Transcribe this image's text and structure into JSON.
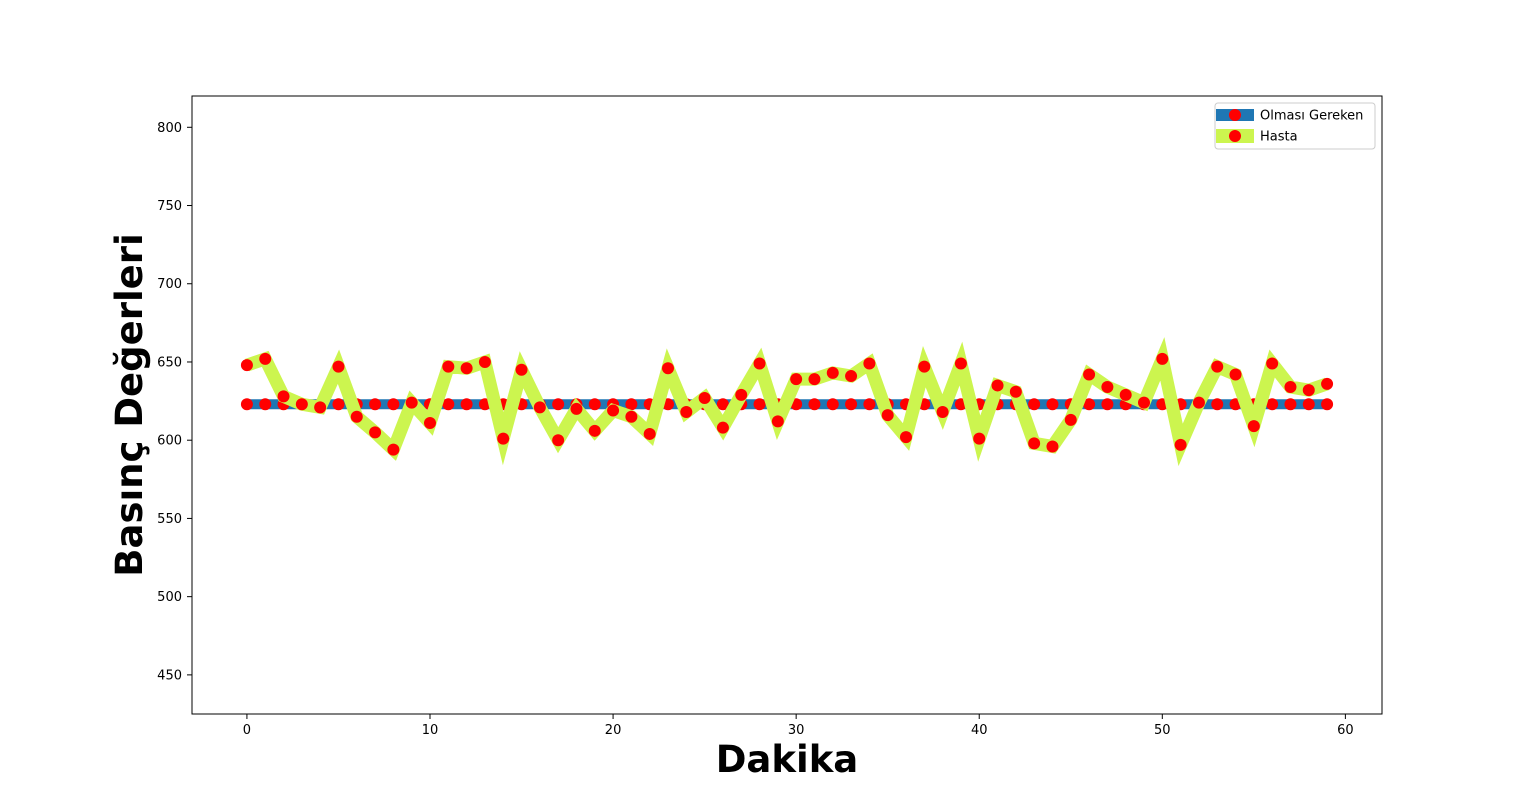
{
  "chart_data": {
    "type": "line",
    "title": "",
    "xlabel": "Dakika",
    "ylabel": "Basınç Değerleri",
    "xlim": [
      -3,
      62
    ],
    "ylim": [
      425,
      820
    ],
    "xticks": [
      0,
      10,
      20,
      30,
      40,
      50,
      60
    ],
    "yticks": [
      450,
      500,
      550,
      600,
      650,
      700,
      750,
      800
    ],
    "grid": false,
    "legend_position": "top-right",
    "series": [
      {
        "name": "Olması Gereken",
        "line_color": "#1f77b4",
        "marker_color": "#ff0000",
        "x": [
          0,
          1,
          2,
          3,
          4,
          5,
          6,
          7,
          8,
          9,
          10,
          11,
          12,
          13,
          14,
          15,
          16,
          17,
          18,
          19,
          20,
          21,
          22,
          23,
          24,
          25,
          26,
          27,
          28,
          29,
          30,
          31,
          32,
          33,
          34,
          35,
          36,
          37,
          38,
          39,
          40,
          41,
          42,
          43,
          44,
          45,
          46,
          47,
          48,
          49,
          50,
          51,
          52,
          53,
          54,
          55,
          56,
          57,
          58,
          59
        ],
        "y": [
          623,
          623,
          623,
          623,
          623,
          623,
          623,
          623,
          623,
          623,
          623,
          623,
          623,
          623,
          623,
          623,
          623,
          623,
          623,
          623,
          623,
          623,
          623,
          623,
          623,
          623,
          623,
          623,
          623,
          623,
          623,
          623,
          623,
          623,
          623,
          623,
          623,
          623,
          623,
          623,
          623,
          623,
          623,
          623,
          623,
          623,
          623,
          623,
          623,
          623,
          623,
          623,
          623,
          623,
          623,
          623,
          623,
          623,
          623,
          623
        ]
      },
      {
        "name": "Hasta",
        "line_color": "#ccf54f",
        "marker_color": "#ff0000",
        "x": [
          0,
          1,
          2,
          3,
          4,
          5,
          6,
          7,
          8,
          9,
          10,
          11,
          12,
          13,
          14,
          15,
          16,
          17,
          18,
          19,
          20,
          21,
          22,
          23,
          24,
          25,
          26,
          27,
          28,
          29,
          30,
          31,
          32,
          33,
          34,
          35,
          36,
          37,
          38,
          39,
          40,
          41,
          42,
          43,
          44,
          45,
          46,
          47,
          48,
          49,
          50,
          51,
          52,
          53,
          54,
          55,
          56,
          57,
          58,
          59
        ],
        "y": [
          648,
          652,
          628,
          623,
          621,
          647,
          615,
          605,
          594,
          624,
          611,
          647,
          646,
          650,
          601,
          645,
          621,
          600,
          620,
          606,
          619,
          615,
          604,
          646,
          618,
          627,
          608,
          629,
          649,
          612,
          639,
          639,
          643,
          641,
          649,
          616,
          602,
          647,
          618,
          649,
          601,
          635,
          631,
          598,
          596,
          613,
          642,
          634,
          629,
          624,
          652,
          597,
          624,
          647,
          642,
          609,
          649,
          634,
          632,
          636
        ]
      }
    ]
  }
}
